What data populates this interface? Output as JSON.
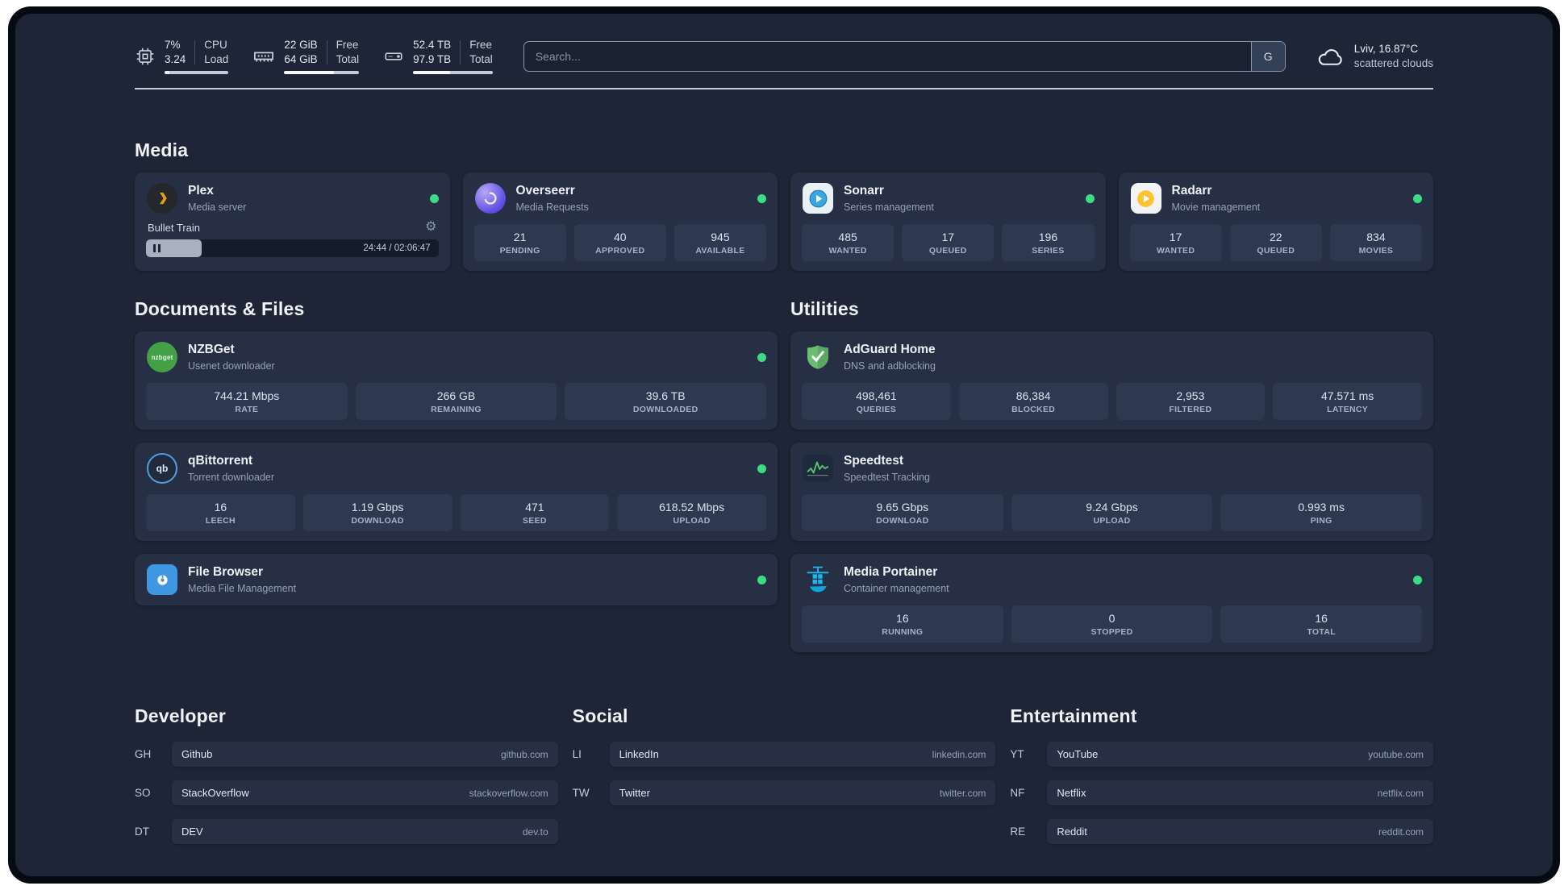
{
  "colors": {
    "background": "#1d2536",
    "card": "#262f44",
    "stat_cell": "#2e3850",
    "status_online": "#3ddc84",
    "divider": "#c9cdd5"
  },
  "topbar": {
    "resources": [
      {
        "id": "cpu",
        "icon": "cpu-icon",
        "col1": [
          "7%",
          "3.24"
        ],
        "col2": [
          "CPU",
          "Load"
        ],
        "progress_pct": 7
      },
      {
        "id": "memory",
        "icon": "memory-icon",
        "col1": [
          "22 GiB",
          "64 GiB"
        ],
        "col2": [
          "Free",
          "Total"
        ],
        "progress_pct": 66
      },
      {
        "id": "disk",
        "icon": "disk-icon",
        "col1": [
          "52.4 TB",
          "97.9 TB"
        ],
        "col2": [
          "Free",
          "Total"
        ],
        "progress_pct": 47
      }
    ],
    "search": {
      "placeholder": "Search...",
      "button_label": "G"
    },
    "weather": {
      "icon": "cloud-icon",
      "location": "Lviv, 16.87°C",
      "condition": "scattered clouds"
    }
  },
  "sections": {
    "media": {
      "title": "Media",
      "cards": [
        {
          "name": "Plex",
          "subtitle": "Media server",
          "icon": "plex-icon",
          "status": "online",
          "player": {
            "title": "Bullet Train",
            "time": "24:44 / 02:06:47",
            "progress_pct": 19,
            "state": "paused"
          }
        },
        {
          "name": "Overseerr",
          "subtitle": "Media Requests",
          "icon": "overseerr-icon",
          "status": "online",
          "stats": [
            {
              "value": "21",
              "label": "PENDING"
            },
            {
              "value": "40",
              "label": "APPROVED"
            },
            {
              "value": "945",
              "label": "AVAILABLE"
            }
          ]
        },
        {
          "name": "Sonarr",
          "subtitle": "Series management",
          "icon": "sonarr-icon",
          "status": "online",
          "stats": [
            {
              "value": "485",
              "label": "WANTED"
            },
            {
              "value": "17",
              "label": "QUEUED"
            },
            {
              "value": "196",
              "label": "SERIES"
            }
          ]
        },
        {
          "name": "Radarr",
          "subtitle": "Movie management",
          "icon": "radarr-icon",
          "status": "online",
          "stats": [
            {
              "value": "17",
              "label": "WANTED"
            },
            {
              "value": "22",
              "label": "QUEUED"
            },
            {
              "value": "834",
              "label": "MOVIES"
            }
          ]
        }
      ]
    },
    "documents": {
      "title": "Documents & Files",
      "cards": [
        {
          "name": "NZBGet",
          "subtitle": "Usenet downloader",
          "icon": "nzbget-icon",
          "status": "online",
          "stats": [
            {
              "value": "744.21 Mbps",
              "label": "RATE"
            },
            {
              "value": "266 GB",
              "label": "REMAINING"
            },
            {
              "value": "39.6 TB",
              "label": "DOWNLOADED"
            }
          ]
        },
        {
          "name": "qBittorrent",
          "subtitle": "Torrent downloader",
          "icon": "qbittorrent-icon",
          "status": "online",
          "stats": [
            {
              "value": "16",
              "label": "LEECH"
            },
            {
              "value": "1.19 Gbps",
              "label": "DOWNLOAD"
            },
            {
              "value": "471",
              "label": "SEED"
            },
            {
              "value": "618.52 Mbps",
              "label": "UPLOAD"
            }
          ]
        },
        {
          "name": "File Browser",
          "subtitle": "Media File Management",
          "icon": "filebrowser-icon",
          "status": "online"
        }
      ]
    },
    "utilities": {
      "title": "Utilities",
      "cards": [
        {
          "name": "AdGuard Home",
          "subtitle": "DNS and adblocking",
          "icon": "adguard-icon",
          "status": null,
          "stats": [
            {
              "value": "498,461",
              "label": "QUERIES"
            },
            {
              "value": "86,384",
              "label": "BLOCKED"
            },
            {
              "value": "2,953",
              "label": "FILTERED"
            },
            {
              "value": "47.571 ms",
              "label": "LATENCY"
            }
          ]
        },
        {
          "name": "Speedtest",
          "subtitle": "Speedtest Tracking",
          "icon": "speedtest-icon",
          "status": null,
          "stats": [
            {
              "value": "9.65 Gbps",
              "label": "DOWNLOAD"
            },
            {
              "value": "9.24 Gbps",
              "label": "UPLOAD"
            },
            {
              "value": "0.993 ms",
              "label": "PING"
            }
          ]
        },
        {
          "name": "Media Portainer",
          "subtitle": "Container management",
          "icon": "portainer-icon",
          "status": "online",
          "stats": [
            {
              "value": "16",
              "label": "RUNNING"
            },
            {
              "value": "0",
              "label": "STOPPED"
            },
            {
              "value": "16",
              "label": "TOTAL"
            }
          ]
        }
      ]
    }
  },
  "bookmarks": [
    {
      "title": "Developer",
      "items": [
        {
          "abbr": "GH",
          "name": "Github",
          "url": "github.com"
        },
        {
          "abbr": "SO",
          "name": "StackOverflow",
          "url": "stackoverflow.com"
        },
        {
          "abbr": "DT",
          "name": "DEV",
          "url": "dev.to"
        }
      ]
    },
    {
      "title": "Social",
      "items": [
        {
          "abbr": "LI",
          "name": "LinkedIn",
          "url": "linkedin.com"
        },
        {
          "abbr": "TW",
          "name": "Twitter",
          "url": "twitter.com"
        }
      ]
    },
    {
      "title": "Entertainment",
      "items": [
        {
          "abbr": "YT",
          "name": "YouTube",
          "url": "youtube.com"
        },
        {
          "abbr": "NF",
          "name": "Netflix",
          "url": "netflix.com"
        },
        {
          "abbr": "RE",
          "name": "Reddit",
          "url": "reddit.com"
        }
      ]
    }
  ]
}
